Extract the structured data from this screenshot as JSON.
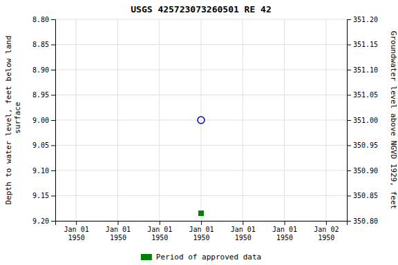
{
  "chart_data": {
    "type": "scatter",
    "title": "USGS 425723073260501 RE  42",
    "y_label": "Depth to water level, feet below land\n surface",
    "y2_label": "Groundwater level above NGVD 1929, feet",
    "categories": [
      "Jan 01\n1950",
      "Jan 01\n1950",
      "Jan 01\n1950",
      "Jan 01\n1950",
      "Jan 01\n1950",
      "Jan 01\n1950",
      "Jan 02\n1950"
    ],
    "series": [
      {
        "color": "#0000cc",
        "marker": "circle",
        "values": [
          null,
          null,
          null,
          9.0,
          null,
          null,
          null
        ]
      },
      {
        "name": "Period of approved data",
        "color": "#008000",
        "marker": "square",
        "values": [
          null,
          null,
          null,
          9.185,
          null,
          null,
          null
        ]
      }
    ],
    "ylim": [
      9.2,
      8.8
    ],
    "yticks": [
      {
        "value": 8.8,
        "label": "8.80"
      },
      {
        "value": 8.85,
        "label": "8.85"
      },
      {
        "value": 8.9,
        "label": "8.90"
      },
      {
        "value": 8.95,
        "label": "8.95"
      },
      {
        "value": 9.0,
        "label": "9.00"
      },
      {
        "value": 9.05,
        "label": "9.05"
      },
      {
        "value": 9.1,
        "label": "9.10"
      },
      {
        "value": 9.15,
        "label": "9.15"
      },
      {
        "value": 9.2,
        "label": "9.20"
      }
    ],
    "y2lim": [
      350.8,
      351.2
    ],
    "y2ticks": [
      {
        "value": 351.2,
        "label": "351.20"
      },
      {
        "value": 351.15,
        "label": "351.15"
      },
      {
        "value": 351.1,
        "label": "351.10"
      },
      {
        "value": 351.05,
        "label": "351.05"
      },
      {
        "value": 351.0,
        "label": "351.00"
      },
      {
        "value": 350.95,
        "label": "350.95"
      },
      {
        "value": 350.9,
        "label": "350.90"
      },
      {
        "value": 350.85,
        "label": "350.85"
      },
      {
        "value": 350.8,
        "label": "350.80"
      }
    ],
    "grid": true,
    "legend": "bottom"
  }
}
